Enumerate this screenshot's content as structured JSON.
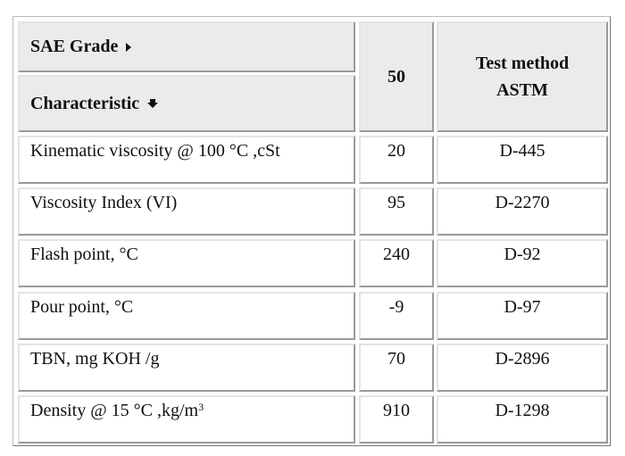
{
  "header": {
    "sae_grade": "SAE Grade",
    "characteristic": "Characteristic",
    "grade": "50",
    "test_method": "Test method ASTM"
  },
  "rows": [
    {
      "characteristic": "Kinematic viscosity @ 100 °C ,cSt",
      "value": 20,
      "method": "D-445"
    },
    {
      "characteristic": "Viscosity Index (VI)",
      "value": 95,
      "method": "D-2270"
    },
    {
      "characteristic": "Flash point, °C",
      "value": 240,
      "method": "D-92"
    },
    {
      "characteristic": "Pour point, °C",
      "value": -9,
      "method": "D-97"
    },
    {
      "characteristic": "TBN, mg KOH /g",
      "value": 70,
      "method": "D-2896"
    },
    {
      "characteristic": "Density @ 15 °C ,kg/m",
      "characteristic_sup": "3",
      "value": 910,
      "method": "D-1298"
    }
  ]
}
